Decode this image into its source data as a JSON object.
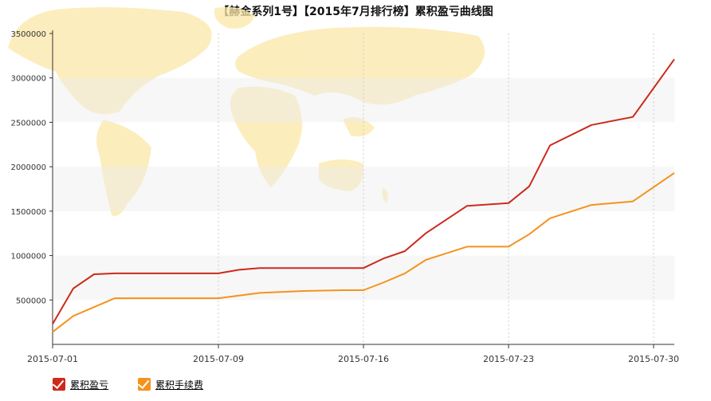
{
  "title": "【赫金系列1号】【2015年7月排行榜】累积盈亏曲线图",
  "chart_data": {
    "type": "line",
    "x_ticks": [
      "2015-07-01",
      "2015-07-09",
      "2015-07-16",
      "2015-07-23",
      "2015-07-30"
    ],
    "y_ticks": [
      "500000",
      "1000000",
      "1500000",
      "2000000",
      "2500000",
      "3000000",
      "3500000"
    ],
    "ylim": [
      0,
      3500000
    ],
    "xlim": [
      "2015-07-01",
      "2015-07-31"
    ],
    "grid": true,
    "legend_position": "bottom-left",
    "x": [
      "2015-07-01",
      "2015-07-02",
      "2015-07-03",
      "2015-07-04",
      "2015-07-06",
      "2015-07-08",
      "2015-07-09",
      "2015-07-10",
      "2015-07-11",
      "2015-07-13",
      "2015-07-15",
      "2015-07-16",
      "2015-07-17",
      "2015-07-18",
      "2015-07-19",
      "2015-07-21",
      "2015-07-23",
      "2015-07-24",
      "2015-07-25",
      "2015-07-27",
      "2015-07-29",
      "2015-07-31"
    ],
    "series": [
      {
        "name": "累积盈亏",
        "color": "#cc2a1c",
        "values": [
          230000,
          630000,
          790000,
          800000,
          800000,
          800000,
          800000,
          840000,
          860000,
          860000,
          860000,
          860000,
          970000,
          1050000,
          1250000,
          1560000,
          1590000,
          1780000,
          2240000,
          2470000,
          2560000,
          3210000
        ]
      },
      {
        "name": "累积手续费",
        "color": "#f5921e",
        "values": [
          140000,
          320000,
          420000,
          520000,
          520000,
          520000,
          520000,
          550000,
          580000,
          600000,
          610000,
          610000,
          700000,
          800000,
          950000,
          1100000,
          1100000,
          1240000,
          1420000,
          1570000,
          1610000,
          1930000
        ]
      }
    ]
  }
}
